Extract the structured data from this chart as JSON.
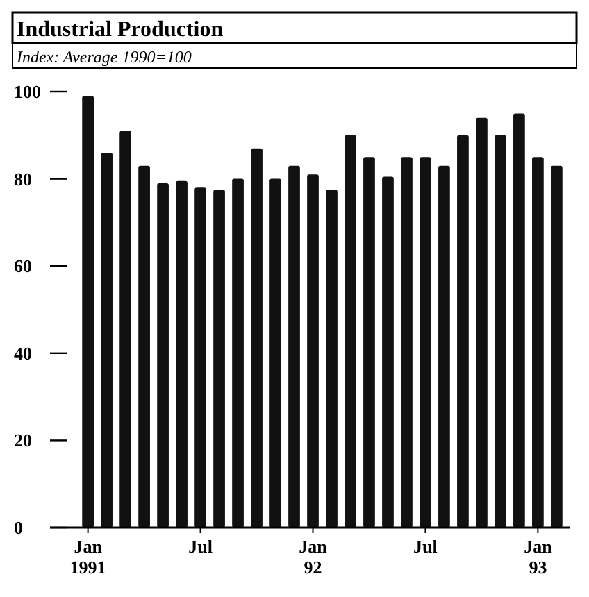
{
  "chart_data": {
    "type": "bar",
    "title": "Industrial Production",
    "subtitle": "Index: Average 1990=100",
    "categories": [
      "Jan\n1991",
      null,
      null,
      null,
      null,
      null,
      "Jul",
      null,
      null,
      null,
      null,
      null,
      "Jan\n92",
      null,
      null,
      null,
      null,
      null,
      "Jul",
      null,
      null,
      null,
      null,
      null,
      "Jan\n93",
      null
    ],
    "values": [
      99,
      86,
      91,
      83,
      79,
      79.5,
      78,
      77.5,
      80,
      87,
      80,
      83,
      81,
      77.5,
      90,
      85,
      80.5,
      85,
      85,
      83,
      90,
      94,
      90,
      95,
      85,
      83
    ],
    "color": "#111111",
    "ylim": [
      0,
      100
    ],
    "yticks": [
      0,
      20,
      40,
      60,
      80,
      100
    ],
    "grid": false
  }
}
